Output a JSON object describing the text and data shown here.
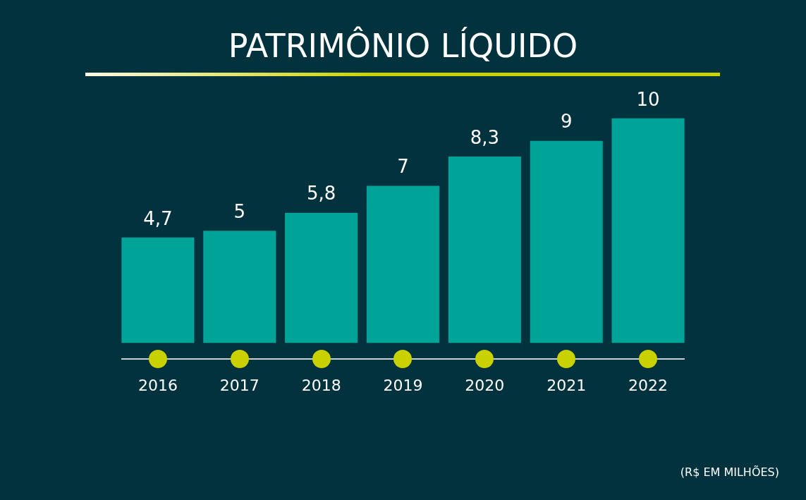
{
  "chart_data": {
    "type": "bar",
    "title": "PATRIMÔNIO LÍQUIDO",
    "categories": [
      "2016",
      "2017",
      "2018",
      "2019",
      "2020",
      "2021",
      "2022"
    ],
    "values": [
      4.7,
      5,
      5.8,
      7,
      8.3,
      9,
      10
    ],
    "value_labels": [
      "4,7",
      "5",
      "5,8",
      "7",
      "8,3",
      "9",
      "10"
    ],
    "color": "#00a397",
    "annotations": [
      "(R$ EM MILHÕES)"
    ]
  }
}
